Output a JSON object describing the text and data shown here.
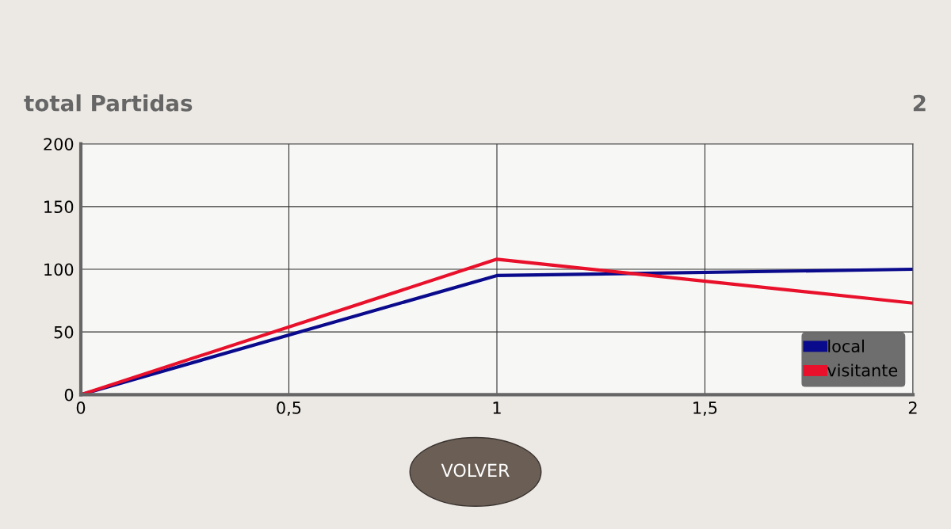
{
  "chart_data": {
    "type": "line",
    "title": "total Partidas",
    "annotations": [
      "2",
      "VOLVER"
    ],
    "x": [
      0,
      1,
      2
    ],
    "series": [
      {
        "name": "local",
        "color": "#0a0a8c",
        "values": [
          0,
          95,
          100
        ]
      },
      {
        "name": "visitante",
        "color": "#e8102a",
        "values": [
          0,
          108,
          73
        ]
      }
    ],
    "xlim": [
      0,
      2
    ],
    "ylim": [
      0,
      200
    ],
    "xticks": [
      0,
      {
        "value": 0.5,
        "label": "0,5"
      },
      1,
      {
        "value": 1.5,
        "label": "1,5"
      },
      2
    ],
    "yticks": [
      0,
      50,
      100,
      150,
      200
    ],
    "grid": true,
    "legend": "lower right",
    "marker": "none",
    "line_style": "solid"
  }
}
